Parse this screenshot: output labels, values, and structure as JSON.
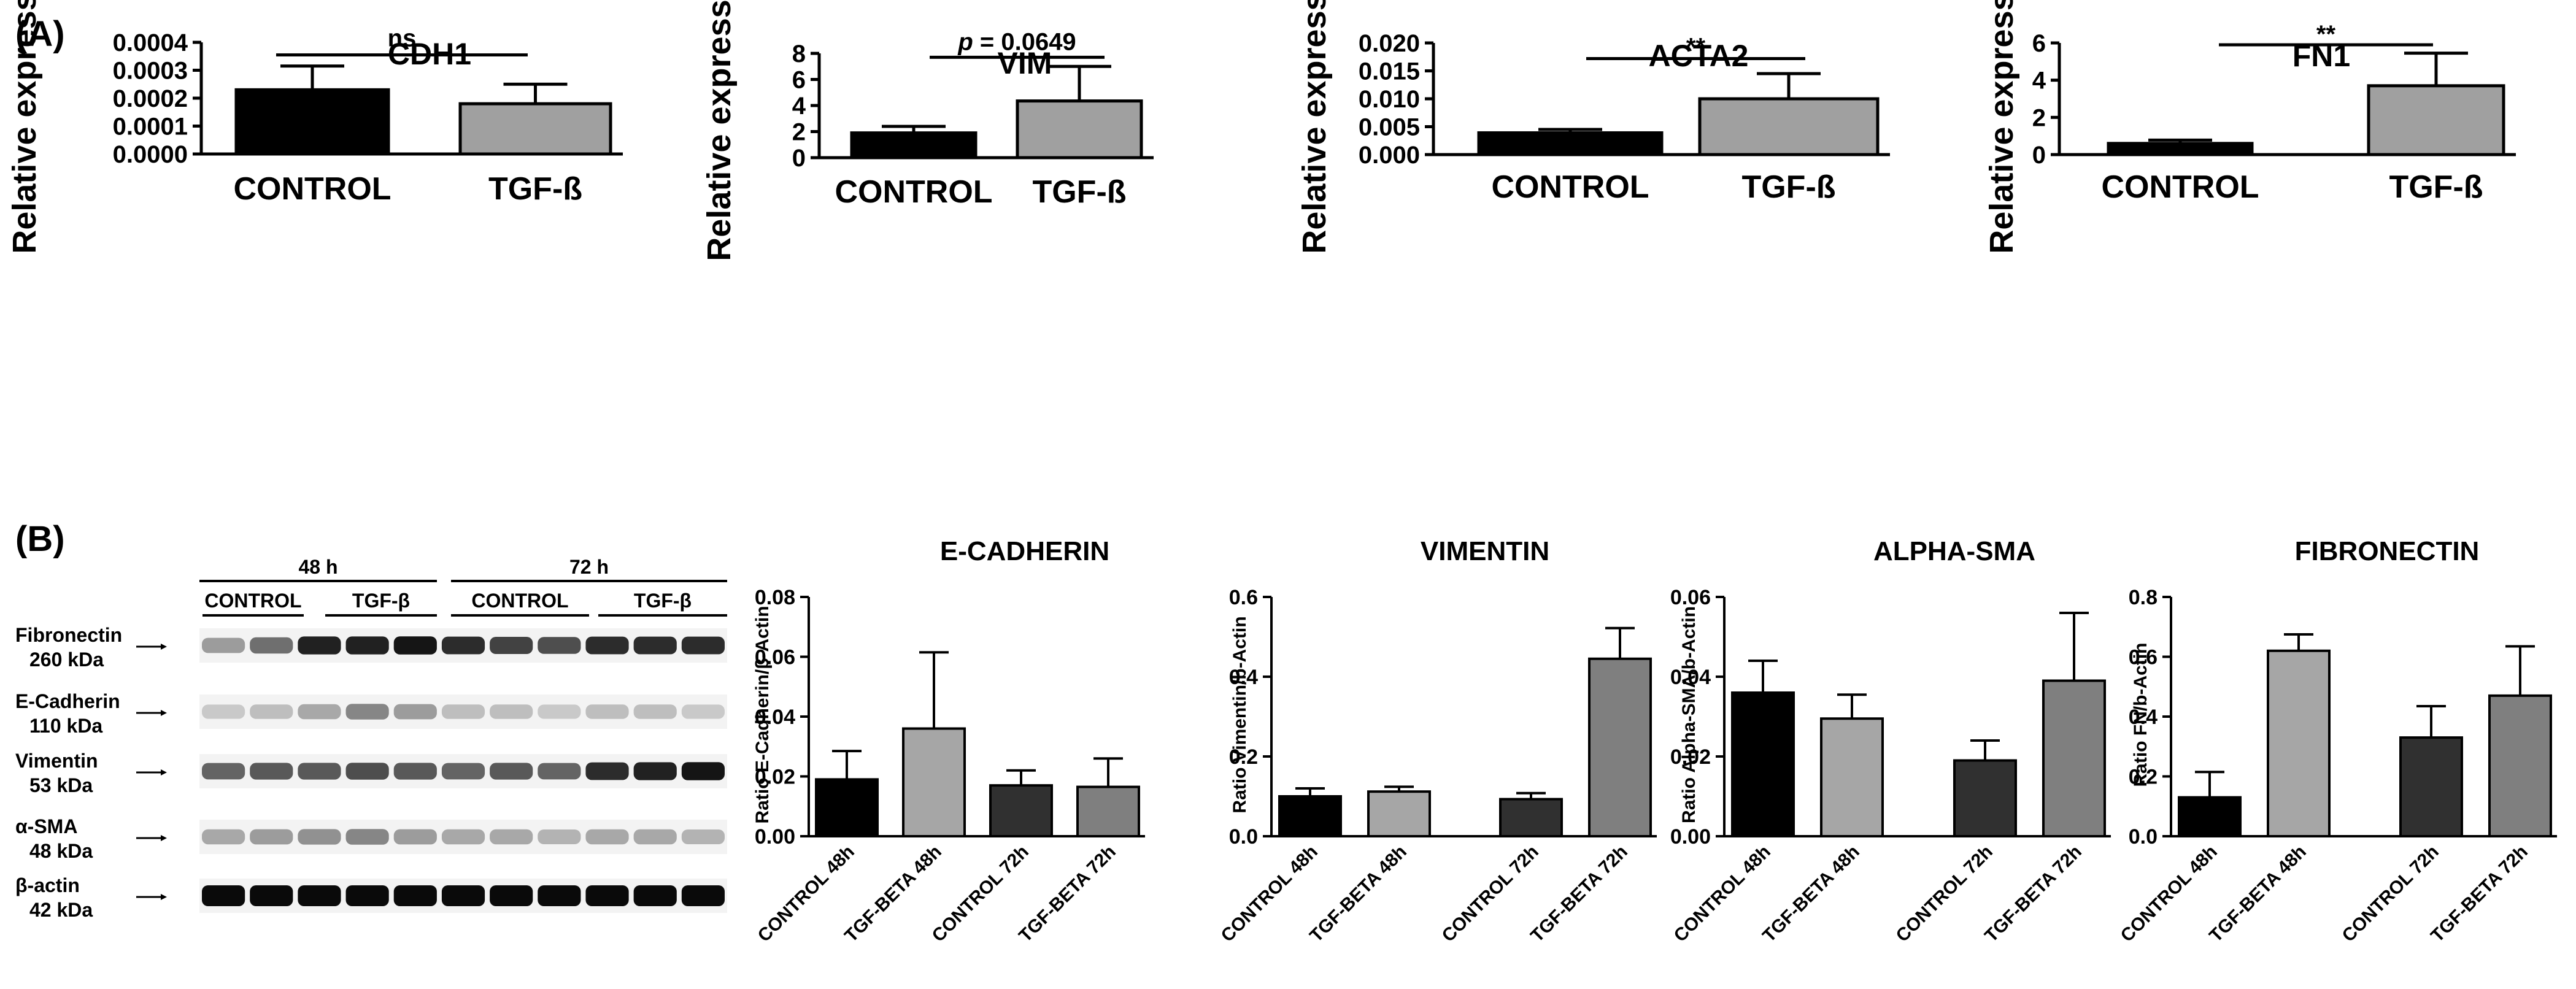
{
  "panels": {
    "a_label": "(A)",
    "b_label": "(B)"
  },
  "western_blot": {
    "time_labels": [
      "48 h",
      "72 h"
    ],
    "group_labels": [
      "CONTROL",
      "TGF-β",
      "CONTROL",
      "TGF-β"
    ],
    "proteins": [
      {
        "name": "Fibronectin",
        "kda": "260 kDa",
        "intensity": [
          0.35,
          0.55,
          0.9,
          0.9,
          0.95,
          0.85,
          0.75,
          0.7,
          0.85,
          0.85,
          0.85
        ]
      },
      {
        "name": "E-Cadherin",
        "kda": "110 kDa",
        "intensity": [
          0.15,
          0.2,
          0.3,
          0.45,
          0.35,
          0.2,
          0.2,
          0.15,
          0.2,
          0.2,
          0.15
        ]
      },
      {
        "name": "Vimentin",
        "kda": "53 kDa",
        "intensity": [
          0.6,
          0.65,
          0.65,
          0.7,
          0.65,
          0.6,
          0.65,
          0.6,
          0.85,
          0.9,
          0.95
        ]
      },
      {
        "name": "α-SMA",
        "kda": "48 kDa",
        "intensity": [
          0.3,
          0.35,
          0.4,
          0.45,
          0.35,
          0.3,
          0.3,
          0.25,
          0.3,
          0.3,
          0.25
        ]
      },
      {
        "name": "β-actin",
        "kda": "42 kDa",
        "intensity": [
          1,
          1,
          1,
          1,
          1,
          1,
          1,
          1,
          1,
          1,
          1
        ]
      }
    ]
  },
  "chart_data": [
    {
      "id": "cdh1",
      "type": "bar",
      "title": "CDH1",
      "ylabel": "Relative expression",
      "categories": [
        "CONTROL",
        "TGF-ß"
      ],
      "values": [
        0.00023,
        0.00018
      ],
      "errors": [
        8.5e-05,
        7e-05
      ],
      "colors": [
        "#000000",
        "#a0a0a0"
      ],
      "ylim": [
        0,
        0.0004
      ],
      "ticks": [
        0,
        0.0001,
        0.0002,
        0.0003,
        0.0004
      ],
      "tick_labels": [
        "0.0000",
        "0.0001",
        "0.0002",
        "0.0003",
        "0.0004"
      ],
      "annotation": {
        "text": "ns",
        "y": 0.000355
      }
    },
    {
      "id": "vim",
      "type": "bar",
      "title": "VIM",
      "ylabel": "Relative expression",
      "categories": [
        "CONTROL",
        "TGF-ß"
      ],
      "values": [
        1.9,
        4.35
      ],
      "errors": [
        0.5,
        2.65
      ],
      "colors": [
        "#000000",
        "#a0a0a0"
      ],
      "ylim": [
        0,
        8
      ],
      "ticks": [
        0,
        2,
        4,
        6,
        8
      ],
      "tick_labels": [
        "0",
        "2",
        "4",
        "6",
        "8"
      ],
      "annotation": {
        "text": "p = 0.0649",
        "y": 7.7
      }
    },
    {
      "id": "acta2",
      "type": "bar",
      "title": "ACTA2",
      "ylabel": "Relative expression",
      "categories": [
        "CONTROL",
        "TGF-ß"
      ],
      "values": [
        0.0039,
        0.01
      ],
      "errors": [
        0.0006,
        0.0045
      ],
      "colors": [
        "#000000",
        "#a0a0a0"
      ],
      "ylim": [
        0,
        0.02
      ],
      "ticks": [
        0,
        0.005,
        0.01,
        0.015,
        0.02
      ],
      "tick_labels": [
        "0.000",
        "0.005",
        "0.010",
        "0.015",
        "0.020"
      ],
      "annotation": {
        "text": "**",
        "y": 0.0172
      }
    },
    {
      "id": "fn1",
      "type": "bar",
      "title": "FN1",
      "ylabel": "Relative expression",
      "categories": [
        "CONTROL",
        "TGF-ß"
      ],
      "values": [
        0.6,
        3.7
      ],
      "errors": [
        0.18,
        1.75
      ],
      "colors": [
        "#000000",
        "#a0a0a0"
      ],
      "ylim": [
        0,
        6
      ],
      "ticks": [
        0,
        2,
        4,
        6
      ],
      "tick_labels": [
        "0",
        "2",
        "4",
        "6"
      ],
      "annotation": {
        "text": "**",
        "y": 5.9
      }
    },
    {
      "id": "ecad",
      "type": "bar",
      "title": "E-CADHERIN",
      "ylabel": "Ratio E-Cadherin/β-Actin",
      "categories": [
        "CONTROL 48h",
        "TGF-BETA 48h",
        "CONTROL 72h",
        "TGF-BETA 72h"
      ],
      "values": [
        0.019,
        0.036,
        0.017,
        0.0165
      ],
      "errors": [
        0.0095,
        0.0255,
        0.005,
        0.0095
      ],
      "colors": [
        "#000000",
        "#a6a6a6",
        "#303030",
        "#7f7f7f"
      ],
      "ylim": [
        0,
        0.08
      ],
      "ticks": [
        0,
        0.02,
        0.04,
        0.06,
        0.08
      ],
      "tick_labels": [
        "0.00",
        "0.02",
        "0.04",
        "0.06",
        "0.08"
      ]
    },
    {
      "id": "vimentin",
      "type": "bar",
      "title": "VIMENTIN",
      "ylabel": "Ratio Vimentin/b-Actin",
      "categories": [
        "CONTROL 48h",
        "TGF-BETA 48h",
        "CONTROL 72h",
        "TGF-BETA 72h"
      ],
      "values": [
        0.1,
        0.112,
        0.093,
        0.445
      ],
      "errors": [
        0.02,
        0.012,
        0.015,
        0.077
      ],
      "colors": [
        "#000000",
        "#a6a6a6",
        "#303030",
        "#7f7f7f"
      ],
      "ylim": [
        0,
        0.6
      ],
      "ticks": [
        0,
        0.2,
        0.4,
        0.6
      ],
      "tick_labels": [
        "0.0",
        "0.2",
        "0.4",
        "0.6"
      ]
    },
    {
      "id": "alphasma",
      "type": "bar",
      "title": "ALPHA-SMA",
      "ylabel": "Ratio Alpha-SMA/b-Actin",
      "categories": [
        "CONTROL 48h",
        "TGF-BETA 48h",
        "CONTROL 72h",
        "TGF-BETA 72h"
      ],
      "values": [
        0.036,
        0.0295,
        0.019,
        0.039
      ],
      "errors": [
        0.008,
        0.006,
        0.005,
        0.017
      ],
      "colors": [
        "#000000",
        "#a6a6a6",
        "#303030",
        "#7f7f7f"
      ],
      "ylim": [
        0,
        0.06
      ],
      "ticks": [
        0,
        0.02,
        0.04,
        0.06
      ],
      "tick_labels": [
        "0.00",
        "0.02",
        "0.04",
        "0.06"
      ]
    },
    {
      "id": "fibronectin",
      "type": "bar",
      "title": "FIBRONECTIN",
      "ylabel": "Ratio FN/b-Actin",
      "categories": [
        "CONTROL 48h",
        "TGF-BETA 48h",
        "CONTROL 72h",
        "TGF-BETA 72h"
      ],
      "values": [
        0.13,
        0.62,
        0.33,
        0.47
      ],
      "errors": [
        0.085,
        0.055,
        0.105,
        0.165
      ],
      "colors": [
        "#000000",
        "#a6a6a6",
        "#303030",
        "#7f7f7f"
      ],
      "ylim": [
        0,
        0.8
      ],
      "ticks": [
        0,
        0.2,
        0.4,
        0.6,
        0.8
      ],
      "tick_labels": [
        "0.0",
        "0.2",
        "0.4",
        "0.6",
        "0.8"
      ]
    }
  ]
}
